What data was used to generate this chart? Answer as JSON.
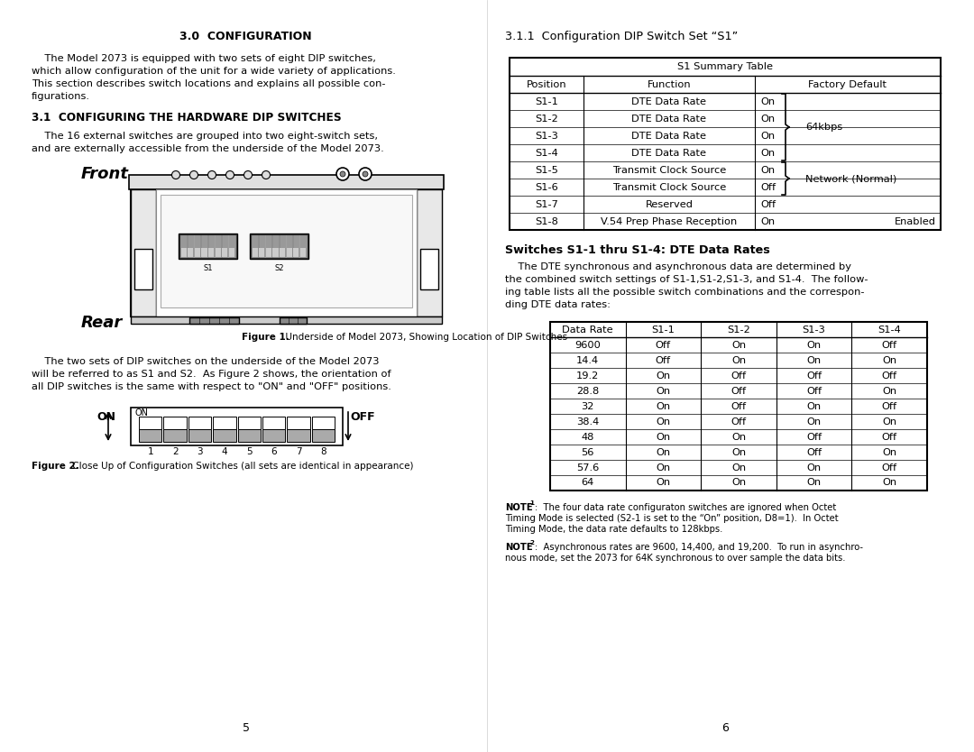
{
  "page_bg": "#ffffff",
  "left_page": {
    "section_title": "3.0  CONFIGURATION",
    "intro_indent": "    The Model 2073 is equipped with two sets of eight DIP switches,",
    "intro_lines": [
      "    The Model 2073 is equipped with two sets of eight DIP switches,",
      "which allow configuration of the unit for a wide variety of applications.",
      "This section describes switch locations and explains all possible con-",
      "figurations."
    ],
    "subsection_title": "3.1  CONFIGURING THE HARDWARE DIP SWITCHES",
    "sub_lines": [
      "    The 16 external switches are grouped into two eight-switch sets,",
      "and are externally accessible from the underside of the Model 2073."
    ],
    "figure1_caption_bold": "Figure 1.",
    "figure1_caption_rest": "  Underside of Model 2073, Showing Location of DIP Switches",
    "para2_lines": [
      "    The two sets of DIP switches on the underside of the Model 2073",
      "will be referred to as S1 and S2.  As Figure 2 shows, the orientation of",
      "all DIP switches is the same with respect to \"ON\" and \"OFF\" positions."
    ],
    "figure2_caption_bold": "Figure 2.",
    "figure2_caption_rest": " Close Up of Configuration Switches (all sets are identical in appearance)",
    "page_num": "5"
  },
  "right_page": {
    "subsection_title": "3.1.1  Configuration DIP Switch Set “S1”",
    "s1_table_header": "S1 Summary Table",
    "s1_table_cols": [
      "Position",
      "Function",
      "Factory Default"
    ],
    "s1_table_rows": [
      [
        "S1-1",
        "DTE Data Rate",
        "On"
      ],
      [
        "S1-2",
        "DTE Data Rate",
        "On"
      ],
      [
        "S1-3",
        "DTE Data Rate",
        "On"
      ],
      [
        "S1-4",
        "DTE Data Rate",
        "On"
      ],
      [
        "S1-5",
        "Transmit Clock Source",
        "On"
      ],
      [
        "S1-6",
        "Transmit Clock Source",
        "Off"
      ],
      [
        "S1-7",
        "Reserved",
        "Off"
      ],
      [
        "S1-8",
        "V.54 Prep Phase Reception",
        "On"
      ]
    ],
    "brace1_label": "64kbps",
    "brace2_label": "Network (Normal)",
    "s18_extra": "Enabled",
    "switches_title": "Switches S1-1 thru S1-4: DTE Data Rates",
    "switches_lines": [
      "    The DTE synchronous and asynchronous data are determined by",
      "the combined switch settings of S1-1,S1-2,S1-3, and S1-4.  The follow-",
      "ing table lists all the possible switch combinations and the correspon-",
      "ding DTE data rates:"
    ],
    "dte_table_cols": [
      "Data Rate",
      "S1-1",
      "S1-2",
      "S1-3",
      "S1-4"
    ],
    "dte_table_rows": [
      [
        "9600",
        "Off",
        "On",
        "On",
        "Off"
      ],
      [
        "14.4",
        "Off",
        "On",
        "On",
        "On"
      ],
      [
        "19.2",
        "On",
        "Off",
        "Off",
        "Off"
      ],
      [
        "28.8",
        "On",
        "Off",
        "Off",
        "On"
      ],
      [
        "32",
        "On",
        "Off",
        "On",
        "Off"
      ],
      [
        "38.4",
        "On",
        "Off",
        "On",
        "On"
      ],
      [
        "48",
        "On",
        "On",
        "Off",
        "Off"
      ],
      [
        "56",
        "On",
        "On",
        "Off",
        "On"
      ],
      [
        "57.6",
        "On",
        "On",
        "On",
        "Off"
      ],
      [
        "64",
        "On",
        "On",
        "On",
        "On"
      ]
    ],
    "note1_bold": "NOTE",
    "note1_super": "1",
    "note1_rest": ":  The four data rate configuraton switches are ignored when Octet\nTiming Mode is selected (S2-1 is set to the “On” position, D8=1).  In Octet\nTiming Mode, the data rate defaults to 128kbps.",
    "note2_bold": "NOTE",
    "note2_super": "2",
    "note2_rest": ":  Asynchronous rates are 9600, 14,400, and 19,200.  To run in asynchro-\nnous mode, set the 2073 for 64K synchronous to over sample the data bits.",
    "page_num": "6"
  }
}
